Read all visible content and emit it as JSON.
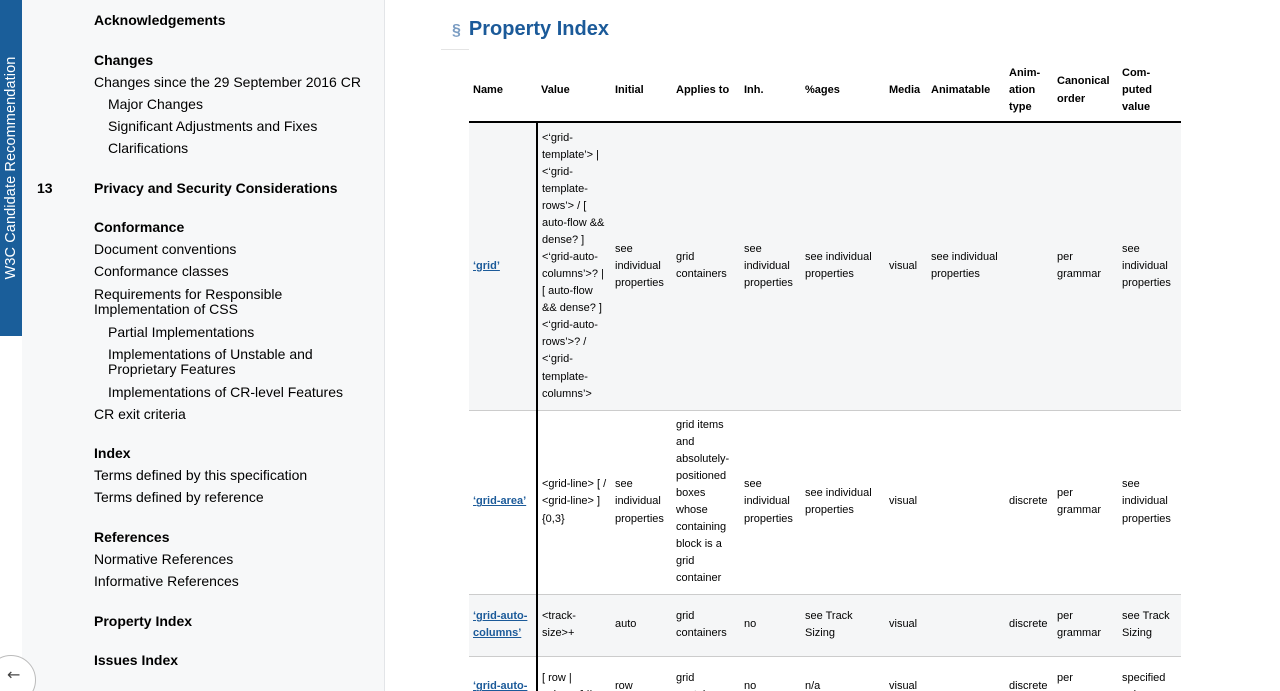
{
  "badge": {
    "text": "W3C Candidate Recommendation"
  },
  "toc": {
    "acknowledgements": "Acknowledgements",
    "changes_title": "Changes",
    "changes_since": "Changes since the 29 September 2016 CR",
    "major_changes": "Major Changes",
    "significant": "Significant Adjustments and Fixes",
    "clarifications": "Clarifications",
    "privacy_num": "13",
    "privacy": "Privacy and Security Considerations",
    "conformance": "Conformance",
    "doc_conventions": "Document conventions",
    "conf_classes": "Conformance classes",
    "requirements": "Requirements for Responsible Implementation of CSS",
    "partial": "Partial Implementations",
    "unstable": "Implementations of Unstable and Proprietary Features",
    "cr_level": "Implementations of CR-level Features",
    "cr_exit": "CR exit criteria",
    "index": "Index",
    "terms_this": "Terms defined by this specification",
    "terms_ref": "Terms defined by reference",
    "references": "References",
    "normative": "Normative References",
    "informative": "Informative References",
    "property_index": "Property Index",
    "issues_index": "Issues Index"
  },
  "back_icon": "←",
  "main": {
    "section_sign": "§",
    "title": "Property Index",
    "headers": [
      "Name",
      "Value",
      "Initial",
      "Applies to",
      "Inh.",
      "%ages",
      "Media",
      "Animatable",
      "Anim-ation type",
      "Canonical order",
      "Com-puted value"
    ],
    "rows": [
      [
        "‘grid’",
        "<‘grid-template’> | <‘grid-template-rows’> / [ auto-flow && dense? ] <‘grid-auto-columns’>? | [ auto-flow && dense? ] <‘grid-auto-rows’>? / <‘grid-template-columns’>",
        "see individual properties",
        "grid containers",
        "see individual properties",
        "see individual properties",
        "visual",
        "see individual properties",
        "",
        "per grammar",
        "see individual properties"
      ],
      [
        "‘grid-area’",
        "<grid-line> [ / <grid-line> ]{0,3}",
        "see individual properties",
        "grid items and absolutely-positioned boxes whose containing block is a grid container",
        "see individual properties",
        "see individual properties",
        "visual",
        "",
        "discrete",
        "per grammar",
        "see individual properties"
      ],
      [
        "‘grid-auto-columns’",
        "<track-size>+",
        "auto",
        "grid containers",
        "no",
        "see Track Sizing",
        "visual",
        "",
        "discrete",
        "per grammar",
        "see Track Sizing"
      ],
      [
        "‘grid-auto-",
        "[ row | column ] ||",
        "row",
        "grid containers",
        "no",
        "n/a",
        "visual",
        "",
        "discrete",
        "per grammar",
        "specified value"
      ]
    ]
  }
}
